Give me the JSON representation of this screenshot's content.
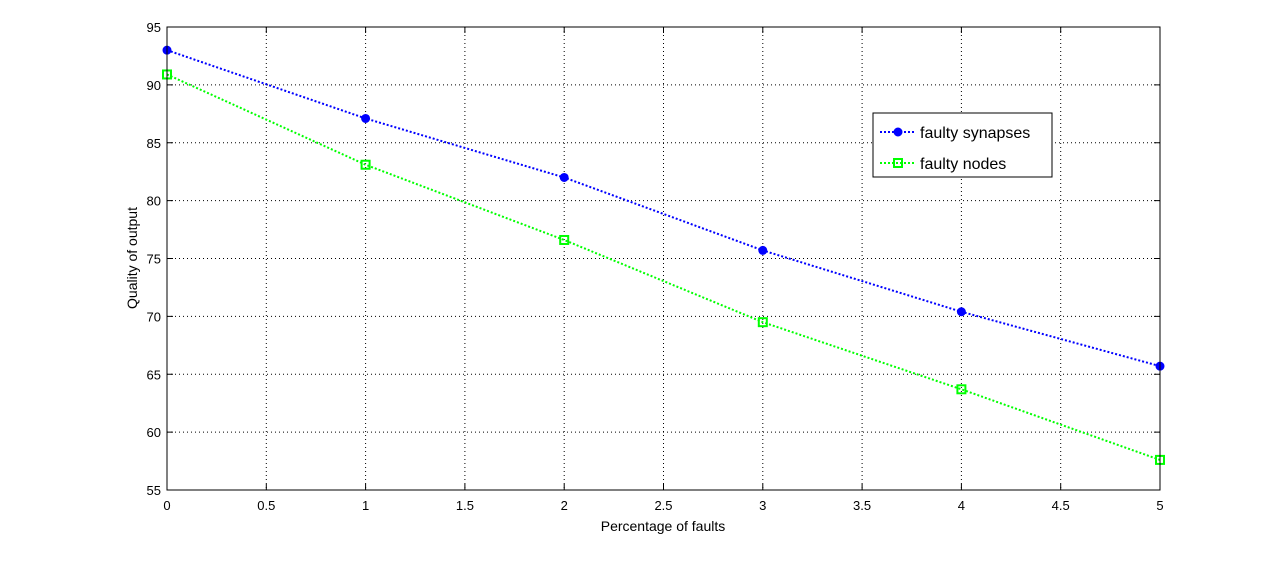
{
  "chart_data": {
    "type": "line",
    "title": "",
    "xlabel": "Percentage of faults",
    "ylabel": "Quality of output",
    "xlim": [
      0,
      5
    ],
    "ylim": [
      55,
      95
    ],
    "xticks": [
      0,
      0.5,
      1,
      1.5,
      2,
      2.5,
      3,
      3.5,
      4,
      4.5,
      5
    ],
    "xtick_labels": [
      "0",
      "0.5",
      "1",
      "1.5",
      "2",
      "2.5",
      "3",
      "3.5",
      "4",
      "4.5",
      "5"
    ],
    "yticks": [
      55,
      60,
      65,
      70,
      75,
      80,
      85,
      90,
      95
    ],
    "ytick_labels": [
      "55",
      "60",
      "65",
      "70",
      "75",
      "80",
      "85",
      "90",
      "95"
    ],
    "grid": true,
    "legend_position": "top-right",
    "x": [
      0,
      1,
      2,
      3,
      4,
      5
    ],
    "series": [
      {
        "name": "faulty synapses",
        "color": "#0000ff",
        "marker": "filled-circle",
        "line_style": "dotted",
        "values": [
          93.0,
          87.1,
          82.0,
          75.7,
          70.4,
          65.7
        ]
      },
      {
        "name": "faulty nodes",
        "color": "#00ff00",
        "marker": "hollow-square",
        "line_style": "dotted",
        "values": [
          90.9,
          83.1,
          76.6,
          69.5,
          63.7,
          57.6
        ]
      }
    ]
  }
}
